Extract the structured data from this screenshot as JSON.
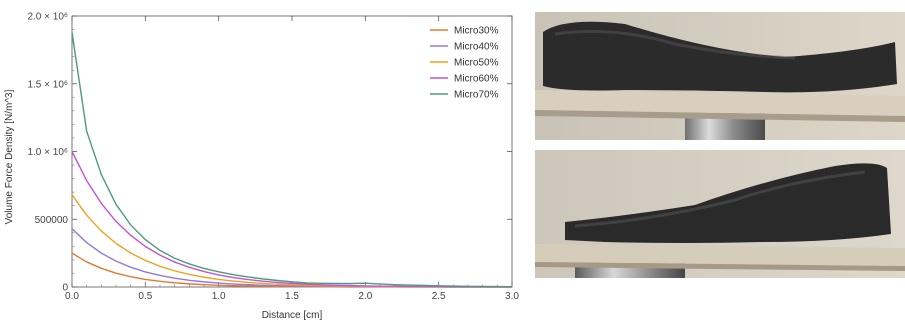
{
  "chart_data": {
    "type": "line",
    "title": "",
    "xlabel": "Distance [cm]",
    "ylabel": "Volume Force Density [N/m^3]",
    "xlim": [
      0,
      3.0
    ],
    "ylim": [
      0,
      2000000
    ],
    "x_ticks": [
      0.0,
      0.5,
      1.0,
      1.5,
      2.0,
      2.5,
      3.0
    ],
    "x_tick_labels": [
      "0.0",
      "0.5",
      "1.0",
      "1.5",
      "2.0",
      "2.5",
      "3.0"
    ],
    "y_ticks": [
      0,
      500000,
      1000000,
      1500000,
      2000000
    ],
    "y_tick_labels": [
      "0",
      "500000",
      "1.0 × 10⁶",
      "1.5 × 10⁶",
      "2.0 × 10⁶"
    ],
    "legend": "top-right",
    "grid": false,
    "x": [
      0.0,
      0.1,
      0.2,
      0.3,
      0.4,
      0.5,
      0.6,
      0.7,
      0.8,
      0.9,
      1.0,
      1.1,
      1.2,
      1.3,
      1.4,
      1.5,
      1.6,
      1.7,
      1.8,
      1.9,
      2.0,
      2.1,
      2.2,
      2.3,
      2.4,
      2.5,
      2.6,
      2.7,
      2.8,
      2.9,
      3.0
    ],
    "series": [
      {
        "name": "Micro30%",
        "color": "#e8772e",
        "values": [
          250000,
          185000,
          138000,
          102000,
          76000,
          56000,
          42000,
          31000,
          23000,
          17000,
          12600,
          9300,
          6900,
          5100,
          3800,
          2800,
          2100,
          1500,
          1100,
          850,
          630,
          470,
          350,
          260,
          190,
          140,
          100,
          80,
          60,
          40,
          30
        ]
      },
      {
        "name": "Micro40%",
        "color": "#8f7ae0",
        "values": [
          430000,
          328000,
          250000,
          191000,
          146000,
          111000,
          85000,
          65000,
          49500,
          37800,
          28800,
          22000,
          16800,
          12800,
          9800,
          7500,
          5700,
          4300,
          3300,
          2500,
          1900,
          1500,
          1100,
          860,
          650,
          500,
          380,
          290,
          220,
          170,
          130
        ]
      },
      {
        "name": "Micro50%",
        "color": "#f0a21e",
        "values": [
          680000,
          530000,
          413000,
          322000,
          251000,
          196000,
          153000,
          119000,
          93000,
          72000,
          56000,
          44000,
          34000,
          26600,
          20700,
          16100,
          12600,
          9800,
          7600,
          6000,
          4600,
          3600,
          2800,
          2200,
          1700,
          1300,
          1000,
          800,
          620,
          480,
          380
        ]
      },
      {
        "name": "Micro60%",
        "color": "#c154d6",
        "values": [
          1000000,
          785000,
          617000,
          484000,
          381000,
          299000,
          235000,
          184000,
          145000,
          114000,
          89000,
          70000,
          55000,
          43200,
          33900,
          26700,
          21000,
          16400,
          12900,
          10200,
          8000,
          6300,
          4900,
          3900,
          3000,
          2400,
          1900,
          1500,
          1150,
          900,
          710
        ]
      },
      {
        "name": "Micro70%",
        "color": "#4e9a7c",
        "values": [
          1880000,
          1150000,
          830000,
          610000,
          458000,
          350000,
          270000,
          212000,
          170000,
          137000,
          112000,
          91000,
          74000,
          60000,
          48000,
          38000,
          30000,
          27000,
          26000,
          25000,
          28000,
          22000,
          17000,
          14000,
          11000,
          8500,
          6500,
          5000,
          4000,
          3000,
          2400
        ]
      }
    ]
  }
}
